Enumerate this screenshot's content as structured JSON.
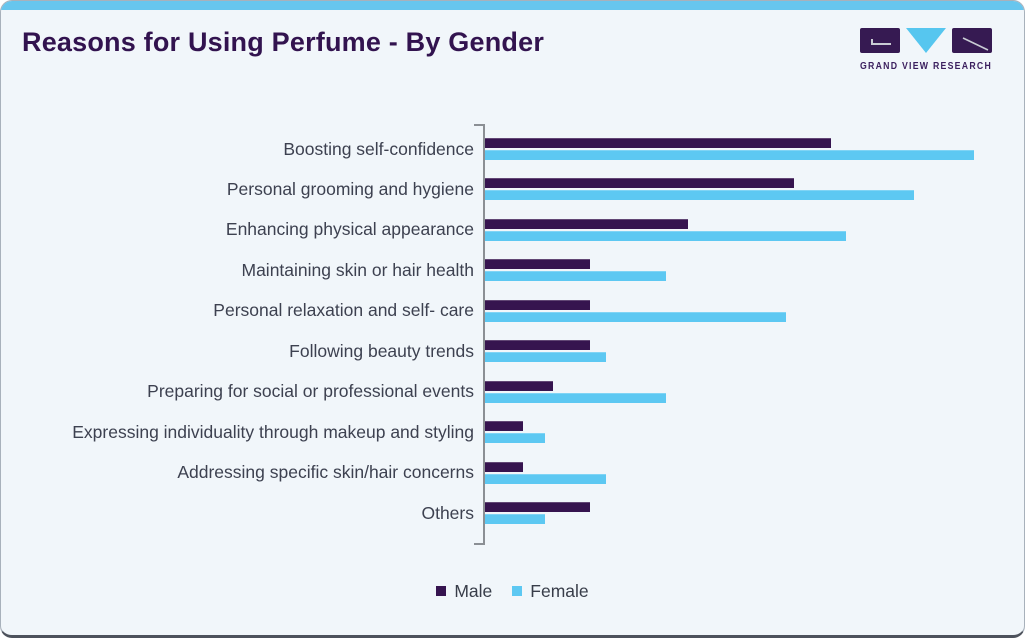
{
  "header": {
    "title": "Reasons for Using Perfume - By Gender",
    "logo_text": "GRAND VIEW RESEARCH"
  },
  "colors": {
    "male": "#36144f",
    "female": "#5dc8f2",
    "accent_strip": "#67c6ee",
    "card_background": "#f1f6fa",
    "title_text": "#32134f",
    "label_text": "#3d4150",
    "axis_line": "#8b8f94"
  },
  "chart_data": {
    "type": "bar",
    "orientation": "horizontal",
    "title": "Reasons for Using Perfume - By Gender",
    "categories": [
      "Boosting self-confidence",
      "Personal grooming and hygiene",
      "Enhancing physical appearance",
      "Maintaining skin or hair health",
      "Personal relaxation and self- care",
      "Following beauty trends",
      "Preparing for social or professional events",
      "Expressing individuality through makeup and styling",
      "Addressing specific skin/hair concerns",
      "Others"
    ],
    "series": [
      {
        "name": "Male",
        "color": "#36144f",
        "values": [
          46,
          41,
          27,
          14,
          14,
          14,
          9,
          5,
          5,
          14
        ]
      },
      {
        "name": "Female",
        "color": "#5dc8f2",
        "values": [
          65,
          57,
          48,
          24,
          40,
          16,
          24,
          8,
          16,
          8
        ]
      }
    ],
    "xlim": [
      0,
      70
    ],
    "x_tick_labels_visible": false,
    "grid": false,
    "legend_position": "bottom"
  }
}
